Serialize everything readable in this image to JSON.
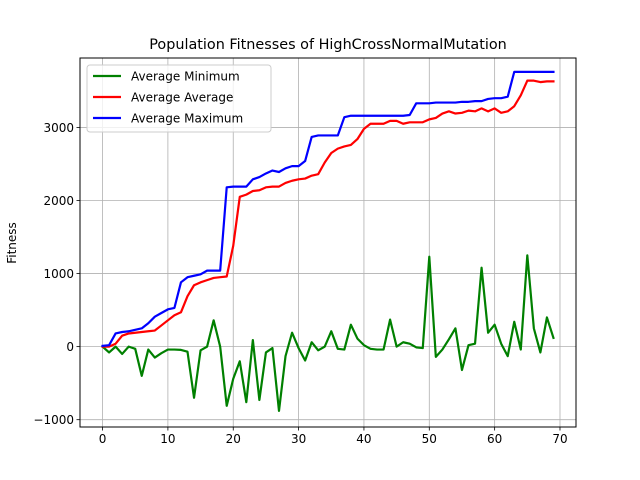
{
  "chart_data": {
    "type": "line",
    "title": "Population Fitnesses of HighCrossNormalMutation",
    "xlabel": "",
    "ylabel": "Fitness",
    "xlim": [
      -3.45,
      72.45
    ],
    "ylim": [
      -1100,
      3950
    ],
    "xticks": [
      0,
      10,
      20,
      30,
      40,
      50,
      60,
      70
    ],
    "yticks": [
      -1000,
      0,
      1000,
      2000,
      3000
    ],
    "ytick_labels": [
      "−1000",
      "0",
      "1000",
      "2000",
      "3000"
    ],
    "grid": true,
    "legend_position": "upper left",
    "x": [
      0,
      1,
      2,
      3,
      4,
      5,
      6,
      7,
      8,
      9,
      10,
      11,
      12,
      13,
      14,
      15,
      16,
      17,
      18,
      19,
      20,
      21,
      22,
      23,
      24,
      25,
      26,
      27,
      28,
      29,
      30,
      31,
      32,
      33,
      34,
      35,
      36,
      37,
      38,
      39,
      40,
      41,
      42,
      43,
      44,
      45,
      46,
      47,
      48,
      49,
      50,
      51,
      52,
      53,
      54,
      55,
      56,
      57,
      58,
      59,
      60,
      61,
      62,
      63,
      64,
      65,
      66,
      67,
      68,
      69
    ],
    "series": [
      {
        "name": "Average Minimum",
        "color": "#008000",
        "values": [
          0,
          -80,
          0,
          -100,
          0,
          -30,
          -400,
          -40,
          -150,
          -90,
          -40,
          -40,
          -45,
          -70,
          -700,
          -50,
          0,
          360,
          0,
          -810,
          -440,
          -200,
          -760,
          90,
          -730,
          -80,
          -20,
          -880,
          -130,
          190,
          -20,
          -190,
          60,
          -50,
          0,
          210,
          -30,
          -40,
          300,
          110,
          20,
          -30,
          -40,
          -40,
          370,
          0,
          60,
          40,
          -10,
          -20,
          1230,
          -140,
          -40,
          100,
          250,
          -320,
          20,
          40,
          1080,
          190,
          300,
          40,
          -130,
          340,
          -40,
          1250,
          250,
          -80,
          400,
          120
        ]
      },
      {
        "name": "Average Average",
        "color": "#ff0000",
        "values": [
          0,
          0,
          40,
          150,
          180,
          190,
          200,
          210,
          220,
          290,
          360,
          430,
          470,
          690,
          840,
          880,
          910,
          940,
          950,
          960,
          1380,
          2050,
          2080,
          2130,
          2140,
          2180,
          2190,
          2190,
          2240,
          2270,
          2290,
          2300,
          2340,
          2360,
          2520,
          2650,
          2710,
          2740,
          2760,
          2840,
          2980,
          3050,
          3050,
          3050,
          3090,
          3090,
          3050,
          3070,
          3070,
          3070,
          3110,
          3130,
          3190,
          3220,
          3190,
          3200,
          3230,
          3220,
          3260,
          3220,
          3260,
          3200,
          3220,
          3290,
          3440,
          3640,
          3640,
          3620,
          3630,
          3630
        ]
      },
      {
        "name": "Average Maximum",
        "color": "#0000ff",
        "values": [
          10,
          20,
          180,
          200,
          210,
          230,
          250,
          320,
          410,
          460,
          510,
          530,
          880,
          950,
          970,
          990,
          1040,
          1040,
          1040,
          2180,
          2190,
          2190,
          2190,
          2290,
          2320,
          2370,
          2410,
          2390,
          2440,
          2470,
          2470,
          2540,
          2870,
          2890,
          2890,
          2890,
          2890,
          3140,
          3160,
          3160,
          3160,
          3160,
          3160,
          3160,
          3160,
          3160,
          3160,
          3170,
          3330,
          3330,
          3330,
          3340,
          3340,
          3340,
          3340,
          3350,
          3350,
          3360,
          3360,
          3390,
          3400,
          3400,
          3420,
          3760,
          3760,
          3760,
          3760,
          3760,
          3760,
          3760
        ]
      }
    ]
  }
}
